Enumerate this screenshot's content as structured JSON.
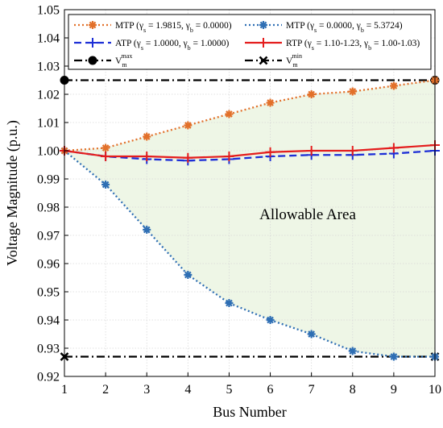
{
  "chart_data": {
    "type": "line",
    "xlabel": "Bus Number",
    "ylabel": "Voltage Magnitude (p.u.)",
    "xlim": [
      1,
      10
    ],
    "ylim": [
      0.92,
      1.05
    ],
    "grid": true,
    "legend_position": "top",
    "x": [
      1,
      2,
      3,
      4,
      5,
      6,
      7,
      8,
      9,
      10
    ],
    "x_ticks": [
      "1",
      "2",
      "3",
      "4",
      "5",
      "6",
      "7",
      "8",
      "9",
      "10"
    ],
    "y_ticks": [
      "0.92",
      "0.93",
      "0.94",
      "0.95",
      "0.96",
      "0.97",
      "0.98",
      "0.99",
      "1.00",
      "1.01",
      "1.02",
      "1.03",
      "1.04",
      "1.05"
    ],
    "series": [
      {
        "name": "MTP (γs = 1.9815, γb = 0.0000)",
        "color": "#e2702a",
        "line_style": "dotted",
        "marker": "asterisk",
        "values": [
          1.0,
          1.001,
          1.005,
          1.009,
          1.013,
          1.017,
          1.02,
          1.021,
          1.023,
          1.025
        ]
      },
      {
        "name": "MTP (γs = 0.0000, γb = 5.3724)",
        "color": "#2f6fb4",
        "line_style": "dotted",
        "marker": "asterisk",
        "values": [
          1.0,
          0.988,
          0.972,
          0.956,
          0.946,
          0.94,
          0.935,
          0.929,
          0.927,
          0.927
        ]
      },
      {
        "name": "ATP (γs = 1.0000, γb = 1.0000)",
        "color": "#1d2fd6",
        "line_style": "dashed",
        "marker": "plus",
        "values": [
          1.0,
          0.998,
          0.997,
          0.9965,
          0.997,
          0.998,
          0.9985,
          0.9985,
          0.999,
          1.0
        ]
      },
      {
        "name": "RTP (γs = 1.10-1.23, γb = 1.00-1.03)",
        "color": "#e41d1d",
        "line_style": "solid",
        "marker": "plus",
        "values": [
          1.0,
          0.998,
          0.998,
          0.9975,
          0.998,
          0.9995,
          1.0,
          1.0,
          1.001,
          1.002
        ]
      },
      {
        "name": "Vm max",
        "color": "#000000",
        "line_style": "dashdot",
        "marker": "circle",
        "values": [
          1.025,
          1.025,
          1.025,
          1.025,
          1.025,
          1.025,
          1.025,
          1.025,
          1.025,
          1.025
        ]
      },
      {
        "name": "Vm min",
        "color": "#000000",
        "line_style": "dashdot",
        "marker": "x",
        "values": [
          0.927,
          0.927,
          0.927,
          0.927,
          0.927,
          0.927,
          0.927,
          0.927,
          0.927,
          0.927
        ]
      }
    ],
    "legend": {
      "mtp1": {
        "base": "MTP (",
        "g1": "γ",
        "s1": "s",
        "mid": " = 1.9815, ",
        "g2": "γ",
        "s2": "b",
        "end": " = 0.0000)"
      },
      "mtp2": {
        "base": "MTP (",
        "g1": "γ",
        "s1": "s",
        "mid": " = 0.0000, ",
        "g2": "γ",
        "s2": "b",
        "end": " = 5.3724)"
      },
      "atp": {
        "base": "ATP (",
        "g1": "γ",
        "s1": "s",
        "mid": " = 1.0000, ",
        "g2": "γ",
        "s2": "b",
        "end": " = 1.0000)"
      },
      "rtp": {
        "base": "RTP (",
        "g1": "γ",
        "s1": "s",
        "mid": " = 1.10-1.23, ",
        "g2": "γ",
        "s2": "b",
        "end": " = 1.00-1.03)"
      },
      "vmax": {
        "base": "V",
        "sub": "m",
        "sup": "max"
      },
      "vmin": {
        "base": "V",
        "sub": "m",
        "sup": "min"
      }
    },
    "fill_area": {
      "color": "#eef6e6",
      "label": "Allowable Area"
    }
  }
}
